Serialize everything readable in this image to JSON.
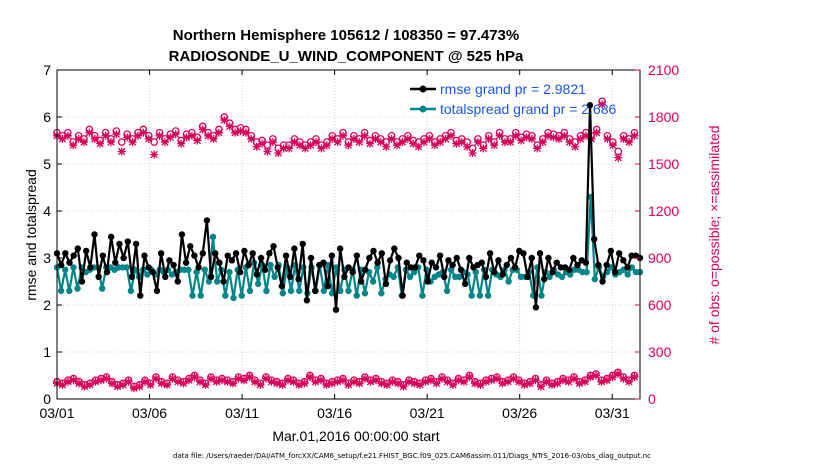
{
  "chart_data": {
    "type": "line",
    "title": "Northern Hemisphere 105612 / 108350 = 97.473%",
    "subtitle": "RADIOSONDE_U_WIND_COMPONENT @ 525 hPa",
    "xlabel": "Mar.01,2016 00:00:00 start",
    "ylabel_left": "rmse and totalspread",
    "ylabel_right": "# of obs: o=possible; ×=assimilated",
    "footnote": "data file: /Users/raeder/DAI/ATM_forcXX/CAM6_setup/f.e21.FHIST_BGC.f09_025.CAM6assim.011/Diags_NTrS_2016-03/obs_diag_output.nc",
    "xlim": [
      0,
      31.5
    ],
    "ylim_left": [
      0,
      7
    ],
    "ylim_right": [
      0,
      2100
    ],
    "xtick_values": [
      0,
      5,
      10,
      15,
      20,
      25,
      30
    ],
    "xtick_labels": [
      "03/01",
      "03/06",
      "03/11",
      "03/16",
      "03/21",
      "03/26",
      "03/31"
    ],
    "ytick_left": [
      "0",
      "1",
      "2",
      "3",
      "4",
      "5",
      "6",
      "7"
    ],
    "ytick_right": [
      "0",
      "300",
      "600",
      "900",
      "1200",
      "1500",
      "1800",
      "2100"
    ],
    "legend_position": "top-right",
    "colors": {
      "rmse": "#000000",
      "spread": "#00858a",
      "obs": "#d9005a",
      "legend_text": "#1a55e8"
    },
    "series": [
      {
        "name": "rmse grand pr = 2.9821",
        "axis": "left",
        "values": [
          3.1,
          2.85,
          3.1,
          2.9,
          3.05,
          3.2,
          2.5,
          3.15,
          2.8,
          3.5,
          2.6,
          3.05,
          2.7,
          3.45,
          2.9,
          3.3,
          3.0,
          3.35,
          2.6,
          3.3,
          2.2,
          3.05,
          2.8,
          2.7,
          2.3,
          3.1,
          2.6,
          2.95,
          2.85,
          2.5,
          3.5,
          2.9,
          3.25,
          3.05,
          2.8,
          3.1,
          3.8,
          2.6,
          3.1,
          2.9,
          2.5,
          3.05,
          2.95,
          3.1,
          2.7,
          3.15,
          2.85,
          3.1,
          2.65,
          3.0,
          2.75,
          3.1,
          3.25,
          2.8,
          2.4,
          3.05,
          2.6,
          3.2,
          2.55,
          3.3,
          2.1,
          3.0,
          2.3,
          2.85,
          2.9,
          2.4,
          3.05,
          1.9,
          3.2,
          2.6,
          2.8,
          2.7,
          3.05,
          2.5,
          2.75,
          3.0,
          3.15,
          2.9,
          3.1,
          2.45,
          2.95,
          3.2,
          3.0,
          2.2,
          2.9,
          2.8,
          2.8,
          3.05,
          2.95,
          2.5,
          2.9,
          2.8,
          3.05,
          2.6,
          2.95,
          2.85,
          3.0,
          2.75,
          2.45,
          3.0,
          2.8,
          2.85,
          2.9,
          2.6,
          3.1,
          2.7,
          2.95,
          2.65,
          2.85,
          3.0,
          2.8,
          3.15,
          3.1,
          2.6,
          3.0,
          1.95,
          3.1,
          2.55,
          3.0,
          2.7,
          2.9,
          2.8,
          2.8,
          2.75,
          3.0,
          2.85,
          2.95,
          2.9,
          6.25,
          3.4,
          2.85,
          2.5,
          2.85,
          3.15,
          2.7,
          3.1,
          2.95,
          2.8,
          3.05,
          3.05,
          3.0
        ]
      },
      {
        "name": "totalspread grand pr = 2.686",
        "axis": "left",
        "values": [
          2.8,
          2.3,
          2.75,
          2.3,
          2.8,
          2.35,
          2.8,
          2.7,
          2.75,
          2.8,
          2.8,
          2.35,
          2.8,
          2.8,
          2.75,
          2.8,
          2.8,
          2.8,
          2.3,
          2.75,
          2.6,
          2.75,
          2.65,
          2.75,
          2.65,
          2.75,
          2.7,
          2.75,
          2.65,
          2.7,
          2.75,
          2.75,
          2.75,
          2.2,
          2.7,
          2.2,
          2.75,
          2.5,
          3.45,
          2.5,
          2.75,
          2.2,
          2.7,
          2.15,
          2.75,
          2.2,
          2.8,
          2.3,
          2.9,
          2.45,
          2.85,
          2.3,
          2.85,
          2.6,
          2.85,
          2.25,
          2.8,
          2.3,
          2.85,
          2.3,
          2.8,
          2.25,
          2.8,
          2.3,
          2.85,
          2.3,
          2.85,
          2.25,
          2.8,
          2.3,
          2.75,
          2.3,
          2.75,
          2.2,
          2.75,
          2.25,
          2.7,
          2.5,
          2.8,
          2.25,
          2.55,
          2.65,
          2.6,
          2.8,
          2.2,
          2.75,
          2.6,
          2.7,
          2.8,
          2.2,
          2.75,
          2.5,
          2.6,
          2.65,
          2.7,
          2.3,
          2.75,
          2.6,
          2.6,
          2.7,
          2.65,
          2.2,
          2.7,
          2.2,
          2.75,
          2.2,
          2.75,
          2.65,
          2.6,
          2.75,
          2.5,
          2.75,
          2.75,
          2.6,
          2.6,
          2.7,
          2.2,
          2.8,
          2.2,
          2.7,
          2.6,
          2.75,
          2.65,
          2.6,
          2.7,
          2.65,
          2.75,
          2.75,
          2.7,
          2.7,
          4.3,
          2.55,
          2.8,
          2.6,
          2.7,
          2.8,
          2.65,
          2.7,
          2.75,
          2.65,
          2.8,
          2.7,
          2.7
        ]
      }
    ],
    "obs_possible": [
      1700,
      1680,
      1700,
      1640,
      1680,
      1660,
      1720,
      1680,
      1650,
      1700,
      1660,
      1710,
      1640,
      1690,
      1660,
      1700,
      1720,
      1680,
      1640,
      1700,
      1660,
      1690,
      1710,
      1650,
      1690,
      1700,
      1670,
      1740,
      1700,
      1680,
      1720,
      1800,
      1760,
      1720,
      1730,
      1720,
      1680,
      1640,
      1650,
      1620,
      1660,
      1600,
      1620,
      1620,
      1660,
      1640,
      1620,
      1640,
      1660,
      1620,
      1640,
      1680,
      1660,
      1700,
      1640,
      1680,
      1660,
      1700,
      1650,
      1680,
      1660,
      1640,
      1680,
      1640,
      1660,
      1680,
      1650,
      1640,
      1660,
      1680,
      1640,
      1660,
      1680,
      1700,
      1650,
      1660,
      1640,
      1600,
      1660,
      1620,
      1680,
      1640,
      1700,
      1660,
      1660,
      1700,
      1670,
      1690,
      1680,
      1620,
      1660,
      1700,
      1690,
      1680,
      1700,
      1660,
      1640,
      1680,
      1700,
      1680,
      1720,
      1900,
      1680,
      1640,
      1580,
      1680,
      1660,
      1700
    ],
    "obs_assim": [
      1680,
      1660,
      1680,
      1620,
      1660,
      1640,
      1700,
      1660,
      1630,
      1680,
      1640,
      1690,
      1580,
      1670,
      1640,
      1680,
      1700,
      1660,
      1560,
      1680,
      1640,
      1670,
      1690,
      1630,
      1670,
      1680,
      1650,
      1720,
      1680,
      1660,
      1700,
      1780,
      1740,
      1700,
      1710,
      1700,
      1660,
      1610,
      1630,
      1580,
      1640,
      1570,
      1600,
      1600,
      1640,
      1620,
      1600,
      1620,
      1640,
      1600,
      1620,
      1660,
      1640,
      1680,
      1620,
      1660,
      1640,
      1680,
      1630,
      1660,
      1640,
      1610,
      1660,
      1620,
      1640,
      1660,
      1630,
      1610,
      1640,
      1660,
      1620,
      1640,
      1660,
      1680,
      1630,
      1640,
      1610,
      1570,
      1640,
      1600,
      1660,
      1620,
      1680,
      1640,
      1640,
      1680,
      1650,
      1670,
      1660,
      1600,
      1640,
      1680,
      1670,
      1660,
      1680,
      1640,
      1610,
      1660,
      1680,
      1660,
      1700,
      1880,
      1660,
      1620,
      1540,
      1660,
      1640,
      1680
    ],
    "obs_low_possible": [
      110,
      100,
      120,
      130,
      110,
      90,
      100,
      120,
      130,
      140,
      110,
      90,
      100,
      120,
      80,
      90,
      120,
      100,
      140,
      110,
      100,
      140,
      120,
      110,
      130,
      150,
      120,
      100,
      140,
      120,
      130,
      120,
      110,
      140,
      130,
      150,
      120,
      100,
      140,
      120,
      110,
      100,
      130,
      120,
      100,
      110,
      150,
      120,
      130,
      100,
      110,
      120,
      130,
      100,
      120,
      110,
      140,
      120,
      130,
      110,
      100,
      120,
      110,
      90,
      120,
      110,
      100,
      120,
      130,
      110,
      140,
      120,
      100,
      130,
      120,
      150,
      110,
      100,
      120,
      130,
      140,
      110,
      120,
      140,
      120,
      100,
      110,
      130,
      90,
      120,
      100,
      110,
      130,
      120,
      140,
      110,
      120,
      150,
      160,
      120,
      130,
      150,
      170,
      140,
      120,
      150
    ],
    "obs_low_assim": [
      100,
      90,
      110,
      120,
      100,
      80,
      90,
      110,
      120,
      130,
      100,
      80,
      90,
      110,
      70,
      80,
      110,
      90,
      130,
      100,
      90,
      130,
      110,
      100,
      120,
      140,
      110,
      90,
      130,
      110,
      120,
      110,
      100,
      130,
      120,
      140,
      110,
      90,
      130,
      110,
      100,
      90,
      120,
      110,
      90,
      100,
      140,
      110,
      120,
      90,
      100,
      110,
      120,
      90,
      110,
      100,
      130,
      110,
      120,
      100,
      90,
      110,
      100,
      80,
      110,
      100,
      90,
      110,
      120,
      100,
      130,
      110,
      90,
      120,
      110,
      140,
      100,
      90,
      110,
      120,
      130,
      100,
      110,
      130,
      110,
      90,
      100,
      120,
      80,
      110,
      90,
      100,
      120,
      110,
      130,
      100,
      110,
      140,
      150,
      110,
      120,
      140,
      160,
      130,
      110,
      140
    ]
  }
}
